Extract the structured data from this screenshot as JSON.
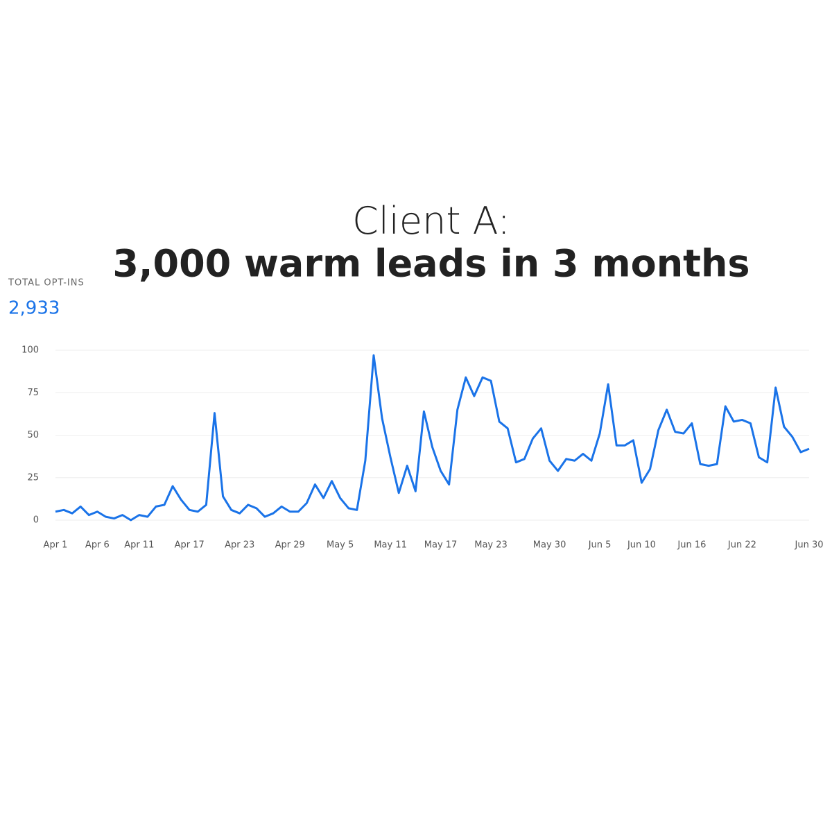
{
  "chart_data": {
    "type": "line",
    "title": "Client A:",
    "subtitle": "3,000 warm leads in 3 months",
    "stat_label": "TOTAL OPT-INS",
    "stat_value": "2,933",
    "categories": [
      "Apr 1",
      null,
      null,
      null,
      null,
      "Apr 6",
      null,
      null,
      null,
      null,
      "Apr 11",
      null,
      null,
      null,
      null,
      null,
      "Apr 17",
      null,
      null,
      null,
      null,
      null,
      "Apr 23",
      null,
      null,
      null,
      null,
      null,
      "Apr 29",
      null,
      null,
      null,
      null,
      null,
      "May 5",
      null,
      null,
      null,
      null,
      null,
      "May 11",
      null,
      null,
      null,
      null,
      null,
      "May 17",
      null,
      null,
      null,
      null,
      null,
      "May 23",
      null,
      null,
      null,
      null,
      null,
      null,
      "May 30",
      null,
      null,
      null,
      null,
      null,
      "Jun 5",
      null,
      null,
      null,
      null,
      "Jun 10",
      null,
      null,
      null,
      null,
      null,
      "Jun 16",
      null,
      null,
      null,
      null,
      null,
      "Jun 22",
      null,
      null,
      null,
      null,
      null,
      null,
      null,
      "Jun 30"
    ],
    "series": [
      {
        "color": "#1a73e8",
        "values": [
          5,
          6,
          4,
          8,
          3,
          5,
          2,
          1,
          3,
          0,
          3,
          2,
          8,
          9,
          20,
          12,
          6,
          5,
          9,
          63,
          14,
          6,
          4,
          9,
          7,
          2,
          4,
          8,
          5,
          5,
          10,
          21,
          13,
          23,
          13,
          7,
          6,
          35,
          97,
          60,
          37,
          16,
          32,
          17,
          64,
          43,
          29,
          21,
          65,
          84,
          73,
          84,
          82,
          58,
          54,
          34,
          36,
          48,
          54,
          35,
          29,
          36,
          35,
          39,
          35,
          51,
          80,
          44,
          44,
          47,
          22,
          30,
          53,
          65,
          52,
          51,
          57,
          33,
          32,
          33,
          67,
          58,
          59,
          57,
          37,
          34,
          78,
          55,
          49,
          40,
          42
        ]
      }
    ],
    "ylim": [
      0,
      100
    ],
    "yticks": [
      0,
      25,
      50,
      75,
      100
    ],
    "grid": true
  }
}
